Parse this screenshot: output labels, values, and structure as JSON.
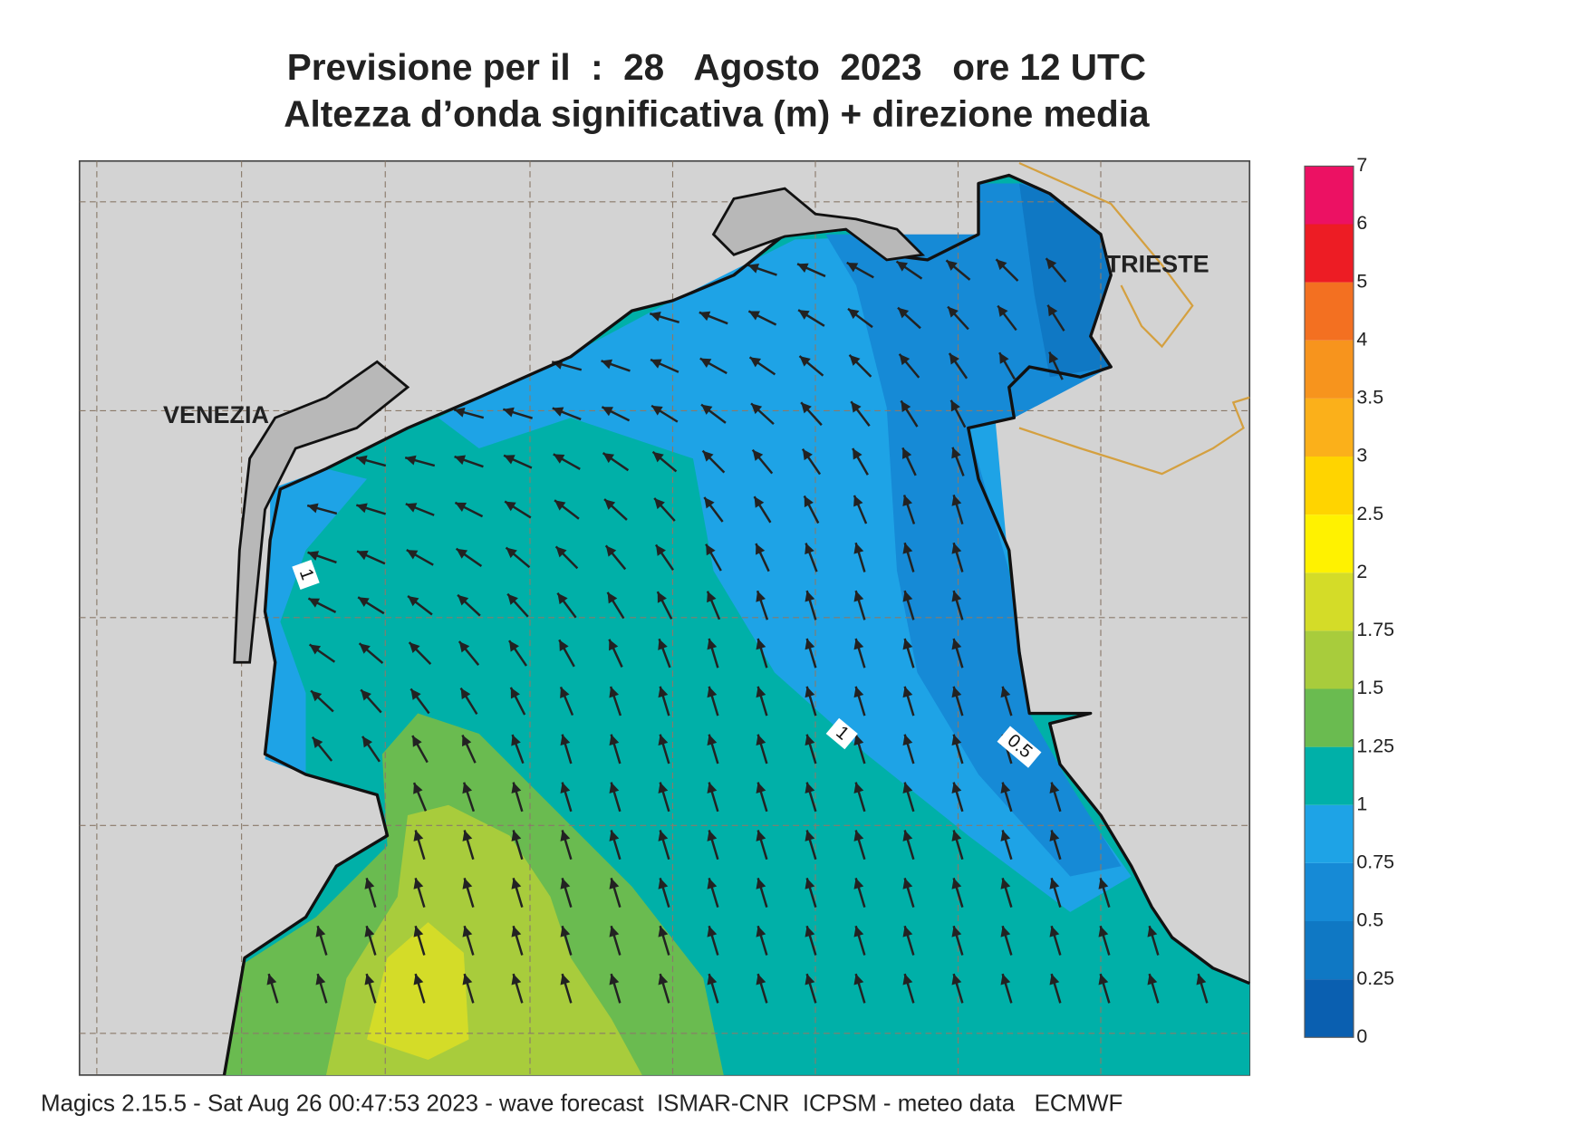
{
  "header": {
    "title": "Previsione per il  :  28   Agosto  2023   ore 12 UTC",
    "subtitle": "Altezza d’onda significativa (m) + direzione media"
  },
  "places": [
    "VENEZIA",
    "TRIESTE"
  ],
  "contour_labels": [
    1,
    1,
    0.5
  ],
  "legend": {
    "levels": [
      0,
      0.25,
      0.5,
      0.75,
      1,
      1.25,
      1.5,
      1.75,
      2,
      2.5,
      3,
      3.5,
      4,
      5,
      6,
      7
    ],
    "colors": [
      "#0a5fb0",
      "#0f78c4",
      "#168ad6",
      "#1ea3e6",
      "#00b0a8",
      "#6abb50",
      "#a8cc3c",
      "#d4dc28",
      "#fff200",
      "#ffd400",
      "#fbb01a",
      "#f7941d",
      "#f37021",
      "#ed1c24",
      "#ec1163"
    ]
  },
  "footer": "Magics 2.15.5 - Sat Aug 26 00:47:53 2023 - wave forecast  ISMAR-CNR  ICPSM - meteo data   ECMWF"
}
